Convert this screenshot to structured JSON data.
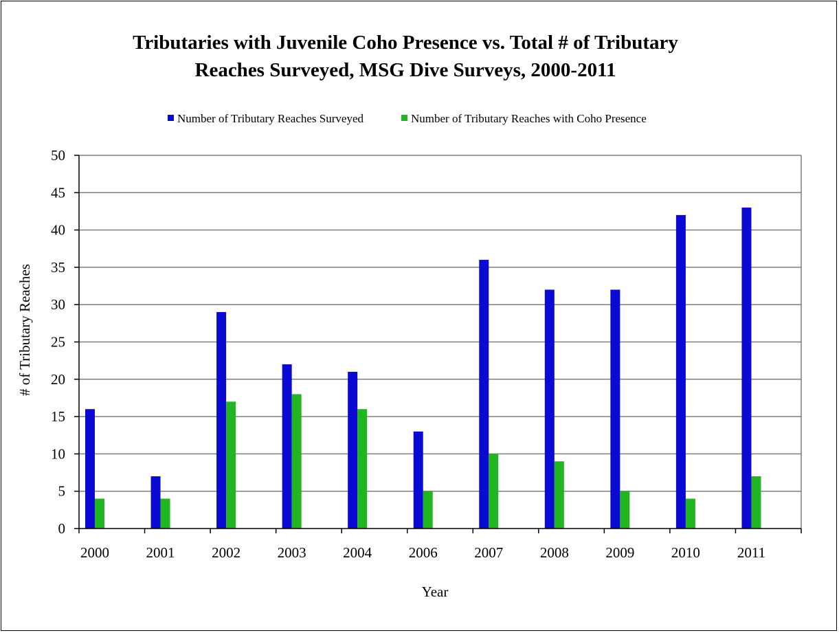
{
  "chart_data": {
    "type": "bar",
    "title_lines": [
      "Tributaries with Juvenile Coho Presence vs. Total # of Tributary",
      "Reaches Surveyed, MSG Dive Surveys, 2000-2011"
    ],
    "xlabel": "Year",
    "ylabel": "# of Tributary Reaches",
    "ylim": [
      0,
      50
    ],
    "yticks": [
      0,
      5,
      10,
      15,
      20,
      25,
      30,
      35,
      40,
      45,
      50
    ],
    "grid": true,
    "legend_position": "top-center",
    "categories": [
      "2000",
      "2001",
      "2002",
      "2003",
      "2004",
      "2006",
      "2007",
      "2008",
      "2009",
      "2010",
      "2011"
    ],
    "series": [
      {
        "name": "Number of Tributary Reaches Surveyed",
        "color": "#0a0ad2",
        "values": [
          16,
          7,
          29,
          22,
          21,
          13,
          36,
          32,
          32,
          42,
          43
        ]
      },
      {
        "name": "Number of Tributary Reaches with Coho Presence",
        "color": "#21b521",
        "values": [
          4,
          4,
          17,
          18,
          16,
          5,
          10,
          9,
          5,
          4,
          7
        ]
      }
    ]
  }
}
